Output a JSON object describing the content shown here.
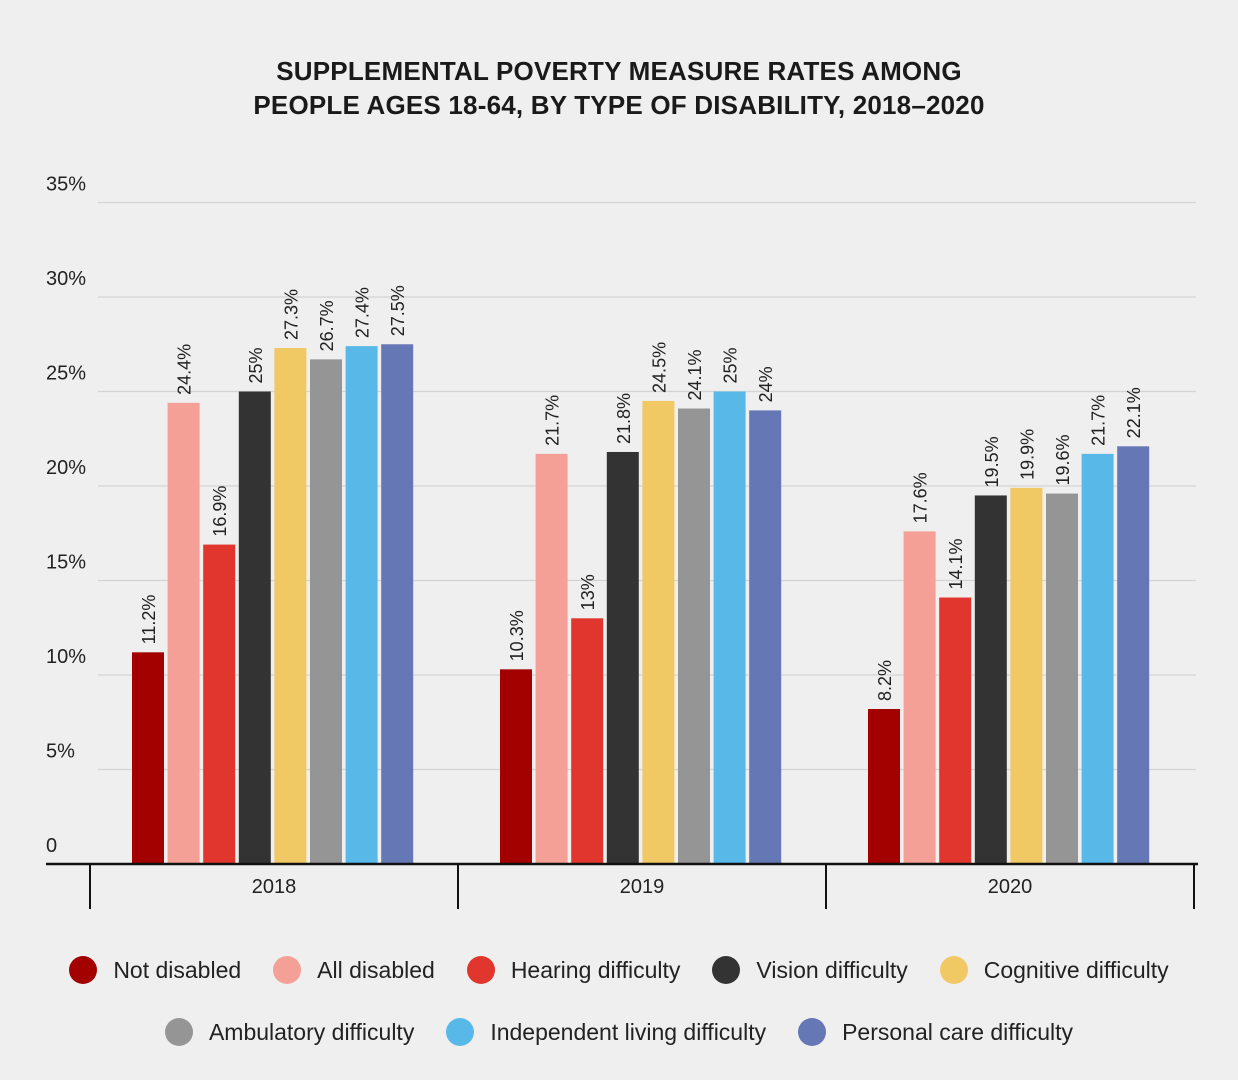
{
  "chart_data": {
    "type": "bar",
    "title": "SUPPLEMENTAL POVERTY MEASURE RATES AMONG",
    "subtitle": "PEOPLE AGES 18-64, BY TYPE OF DISABILITY, 2018–2020",
    "xlabel": "",
    "ylabel": "",
    "ylim": [
      0,
      35
    ],
    "y_ticks": [
      {
        "value": 0,
        "label": "0"
      },
      {
        "value": 5,
        "label": "5%"
      },
      {
        "value": 10,
        "label": "10%"
      },
      {
        "value": 15,
        "label": "15%"
      },
      {
        "value": 20,
        "label": "20%"
      },
      {
        "value": 25,
        "label": "25%"
      },
      {
        "value": 30,
        "label": "30%"
      },
      {
        "value": 35,
        "label": "35%"
      }
    ],
    "grid": true,
    "legend_position": "bottom",
    "categories": [
      "2018",
      "2019",
      "2020"
    ],
    "series": [
      {
        "name": "Not disabled",
        "color": "#a30000",
        "values": [
          11.2,
          10.3,
          8.2
        ],
        "labels": [
          "11.2%",
          "10.3%",
          "8.2%"
        ]
      },
      {
        "name": "All disabled",
        "color": "#f4a096",
        "values": [
          24.4,
          21.7,
          17.6
        ],
        "labels": [
          "24.4%",
          "21.7%",
          "17.6%"
        ]
      },
      {
        "name": "Hearing difficulty",
        "color": "#e1362d",
        "values": [
          16.9,
          13,
          14.1
        ],
        "labels": [
          "16.9%",
          "13%",
          "14.1%"
        ]
      },
      {
        "name": "Vision difficulty",
        "color": "#333333",
        "values": [
          25,
          21.8,
          19.5
        ],
        "labels": [
          "25%",
          "21.8%",
          "19.5%"
        ]
      },
      {
        "name": "Cognitive difficulty",
        "color": "#f1c964",
        "values": [
          27.3,
          24.5,
          19.9
        ],
        "labels": [
          "27.3%",
          "24.5%",
          "19.9%"
        ]
      },
      {
        "name": "Ambulatory difficulty",
        "color": "#959595",
        "values": [
          26.7,
          24.1,
          19.6
        ],
        "labels": [
          "26.7%",
          "24.1%",
          "19.6%"
        ]
      },
      {
        "name": "Independent living difficulty",
        "color": "#58b9e8",
        "values": [
          27.4,
          25,
          21.7
        ],
        "labels": [
          "27.4%",
          "25%",
          "21.7%"
        ]
      },
      {
        "name": "Personal care difficulty",
        "color": "#6677b6",
        "values": [
          27.5,
          24,
          22.1
        ],
        "labels": [
          "27.5%",
          "24%",
          "22.1%"
        ]
      }
    ]
  }
}
